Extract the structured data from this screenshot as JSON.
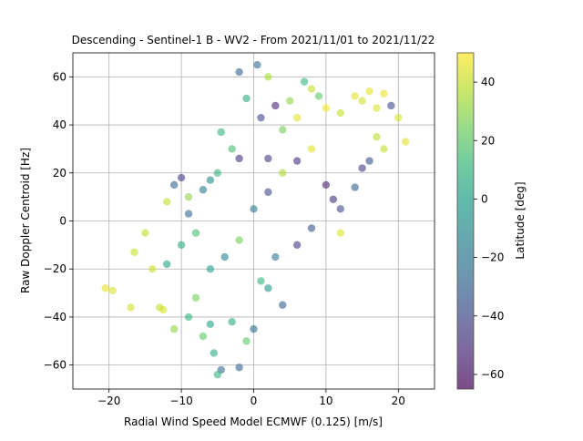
{
  "chart_data": {
    "type": "scatter",
    "title": "Descending - Sentinel-1 B - WV2 - From 2021/11/01 to 2021/11/22",
    "xlabel": "Radial Wind Speed Model ECMWF (0.125) [m/s]",
    "ylabel": "Raw Doppler Centroid [Hz]",
    "xlim": [
      -25,
      25
    ],
    "ylim": [
      -70,
      70
    ],
    "xticks": [
      -20,
      -10,
      0,
      10,
      20
    ],
    "yticks": [
      -60,
      -40,
      -20,
      0,
      20,
      40,
      60
    ],
    "grid": true,
    "marker_alpha": 0.6,
    "colormap": "viridis",
    "colorbar": {
      "label": "Latitude [deg]",
      "range": [
        -65,
        50
      ],
      "ticks": [
        -60,
        -40,
        -20,
        0,
        20,
        40
      ]
    },
    "points": [
      {
        "x": -20.5,
        "y": -28,
        "lat": 45
      },
      {
        "x": -19.5,
        "y": -29,
        "lat": 44
      },
      {
        "x": -17,
        "y": -36,
        "lat": 42
      },
      {
        "x": -16.5,
        "y": -13,
        "lat": 40
      },
      {
        "x": -15,
        "y": -5,
        "lat": 38
      },
      {
        "x": -14,
        "y": -20,
        "lat": 42
      },
      {
        "x": -13,
        "y": -36,
        "lat": 40
      },
      {
        "x": -12.5,
        "y": -37,
        "lat": 43
      },
      {
        "x": -12,
        "y": 8,
        "lat": 39
      },
      {
        "x": -11,
        "y": 15,
        "lat": -30
      },
      {
        "x": -10,
        "y": 18,
        "lat": -45
      },
      {
        "x": -9,
        "y": 10,
        "lat": 30
      },
      {
        "x": -7,
        "y": 13,
        "lat": -20
      },
      {
        "x": -6,
        "y": 17,
        "lat": -10
      },
      {
        "x": -5,
        "y": 20,
        "lat": 10
      },
      {
        "x": -4.5,
        "y": 37,
        "lat": 10
      },
      {
        "x": -3,
        "y": 30,
        "lat": 15
      },
      {
        "x": -2,
        "y": 26,
        "lat": -50
      },
      {
        "x": -2,
        "y": 62,
        "lat": -30
      },
      {
        "x": -1,
        "y": 51,
        "lat": 5
      },
      {
        "x": 0.5,
        "y": 65,
        "lat": -25
      },
      {
        "x": 1,
        "y": 43,
        "lat": -40
      },
      {
        "x": 2,
        "y": 60,
        "lat": 35
      },
      {
        "x": 3,
        "y": 48,
        "lat": -55
      },
      {
        "x": 4,
        "y": 38,
        "lat": 25
      },
      {
        "x": 5,
        "y": 50,
        "lat": 30
      },
      {
        "x": 6,
        "y": 43,
        "lat": 45
      },
      {
        "x": 7,
        "y": 58,
        "lat": 10
      },
      {
        "x": 8,
        "y": 55,
        "lat": 40
      },
      {
        "x": 9,
        "y": 52,
        "lat": 20
      },
      {
        "x": 10,
        "y": 47,
        "lat": 48
      },
      {
        "x": 12,
        "y": 45,
        "lat": 40
      },
      {
        "x": 14,
        "y": 52,
        "lat": 45
      },
      {
        "x": 15,
        "y": 50,
        "lat": 42
      },
      {
        "x": 16,
        "y": 54,
        "lat": 46
      },
      {
        "x": 17,
        "y": 47,
        "lat": 44
      },
      {
        "x": 18,
        "y": 53,
        "lat": 47
      },
      {
        "x": 19,
        "y": 48,
        "lat": -40
      },
      {
        "x": 20,
        "y": 43,
        "lat": 43
      },
      {
        "x": 21,
        "y": 33,
        "lat": 45
      },
      {
        "x": 17,
        "y": 35,
        "lat": 38
      },
      {
        "x": 16,
        "y": 25,
        "lat": -35
      },
      {
        "x": 14,
        "y": 14,
        "lat": -30
      },
      {
        "x": 12,
        "y": 5,
        "lat": -40
      },
      {
        "x": 12,
        "y": -5,
        "lat": 44
      },
      {
        "x": 8,
        "y": -3,
        "lat": -35
      },
      {
        "x": 6,
        "y": -10,
        "lat": -45
      },
      {
        "x": 3,
        "y": -15,
        "lat": -20
      },
      {
        "x": 1,
        "y": -25,
        "lat": 10
      },
      {
        "x": 0,
        "y": -45,
        "lat": -25
      },
      {
        "x": -1,
        "y": -50,
        "lat": 20
      },
      {
        "x": -2,
        "y": -61,
        "lat": -30
      },
      {
        "x": -4.5,
        "y": -62,
        "lat": -25
      },
      {
        "x": -5,
        "y": -64,
        "lat": 10
      },
      {
        "x": -5.5,
        "y": -55,
        "lat": 5
      },
      {
        "x": -7,
        "y": -48,
        "lat": 20
      },
      {
        "x": -6,
        "y": -43,
        "lat": 0
      },
      {
        "x": -9,
        "y": -40,
        "lat": 10
      },
      {
        "x": -11,
        "y": -45,
        "lat": 30
      },
      {
        "x": 4,
        "y": -35,
        "lat": -30
      },
      {
        "x": 2,
        "y": -28,
        "lat": -5
      },
      {
        "x": -3,
        "y": -42,
        "lat": 5
      },
      {
        "x": -8,
        "y": -32,
        "lat": 25
      },
      {
        "x": 2,
        "y": 26,
        "lat": -45
      },
      {
        "x": 11,
        "y": 9,
        "lat": -50
      },
      {
        "x": 15,
        "y": 22,
        "lat": -45
      },
      {
        "x": 18,
        "y": 30,
        "lat": 40
      },
      {
        "x": 10,
        "y": 15,
        "lat": -55
      },
      {
        "x": -10,
        "y": -10,
        "lat": 5
      },
      {
        "x": -8,
        "y": -5,
        "lat": 15
      },
      {
        "x": -6,
        "y": -20,
        "lat": 0
      },
      {
        "x": -4,
        "y": -15,
        "lat": -15
      },
      {
        "x": -2,
        "y": -8,
        "lat": 25
      },
      {
        "x": 0,
        "y": 5,
        "lat": -20
      },
      {
        "x": 2,
        "y": 12,
        "lat": -40
      },
      {
        "x": 4,
        "y": 20,
        "lat": 35
      },
      {
        "x": 6,
        "y": 25,
        "lat": -50
      },
      {
        "x": 8,
        "y": 30,
        "lat": 45
      },
      {
        "x": -12,
        "y": -18,
        "lat": 0
      },
      {
        "x": -9,
        "y": 3,
        "lat": -25
      }
    ]
  }
}
